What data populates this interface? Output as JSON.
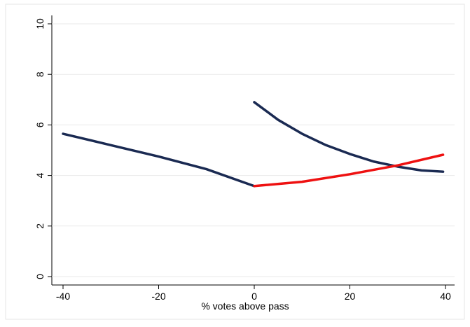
{
  "chart_data": {
    "type": "line",
    "x_label": "% votes above pass",
    "xlim": [
      -40,
      40
    ],
    "xticks": [
      -40,
      -20,
      0,
      20,
      40
    ],
    "ylim": [
      0,
      10
    ],
    "yticks": [
      0,
      2,
      4,
      6,
      8,
      10
    ],
    "grid": true,
    "series": [
      {
        "color": "#1a2a52",
        "x": [
          -40,
          -30,
          -20,
          -10,
          0
        ],
        "values": [
          5.65,
          5.2,
          4.75,
          4.25,
          3.58
        ]
      },
      {
        "color": "#1a2a52",
        "x": [
          0,
          5,
          10,
          15,
          20,
          25,
          30,
          35,
          39.5
        ],
        "values": [
          6.9,
          6.2,
          5.65,
          5.2,
          4.85,
          4.55,
          4.35,
          4.2,
          4.15
        ]
      },
      {
        "color": "#ee1111",
        "x": [
          0,
          10,
          20,
          30,
          39.5
        ],
        "values": [
          3.58,
          3.75,
          4.05,
          4.4,
          4.82
        ]
      }
    ]
  }
}
